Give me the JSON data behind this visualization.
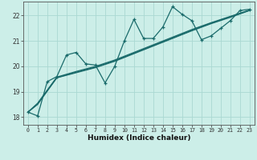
{
  "xlabel": "Humidex (Indice chaleur)",
  "bg_color": "#cceee8",
  "grid_color": "#aad8d2",
  "line_color": "#1a6b6b",
  "xlim": [
    -0.5,
    23.5
  ],
  "ylim": [
    17.7,
    22.55
  ],
  "xticks": [
    0,
    1,
    2,
    3,
    4,
    5,
    6,
    7,
    8,
    9,
    10,
    11,
    12,
    13,
    14,
    15,
    16,
    17,
    18,
    19,
    20,
    21,
    22,
    23
  ],
  "yticks": [
    18,
    19,
    20,
    21,
    22
  ],
  "series1_x": [
    0,
    1,
    2,
    3,
    4,
    5,
    6,
    7,
    8,
    9,
    10,
    11,
    12,
    13,
    14,
    15,
    16,
    17,
    18,
    19,
    20,
    21,
    22,
    23
  ],
  "series1_y": [
    18.2,
    18.05,
    19.4,
    19.6,
    20.45,
    20.55,
    20.1,
    20.05,
    19.35,
    20.0,
    21.0,
    21.85,
    21.1,
    21.1,
    21.55,
    22.35,
    22.05,
    21.8,
    21.05,
    21.2,
    21.5,
    21.8,
    22.2,
    22.25
  ],
  "series2_x": [
    0,
    1,
    3,
    5,
    7,
    9,
    11,
    13,
    15,
    17,
    19,
    21,
    23
  ],
  "series2_y": [
    18.2,
    18.5,
    19.55,
    19.75,
    19.95,
    20.2,
    20.5,
    20.8,
    21.1,
    21.4,
    21.68,
    21.93,
    22.2
  ],
  "series3_x": [
    0,
    1,
    3,
    5,
    7,
    9,
    11,
    13,
    15,
    17,
    19,
    21,
    23
  ],
  "series3_y": [
    18.2,
    18.55,
    19.58,
    19.8,
    20.0,
    20.25,
    20.55,
    20.85,
    21.15,
    21.45,
    21.72,
    21.97,
    22.22
  ],
  "series4_x": [
    0,
    1,
    3,
    5,
    7,
    9,
    11,
    13,
    15,
    17,
    19,
    21,
    23
  ],
  "series4_y": [
    18.2,
    18.52,
    19.56,
    19.77,
    19.97,
    20.22,
    20.52,
    20.82,
    21.12,
    21.42,
    21.7,
    21.95,
    22.21
  ]
}
